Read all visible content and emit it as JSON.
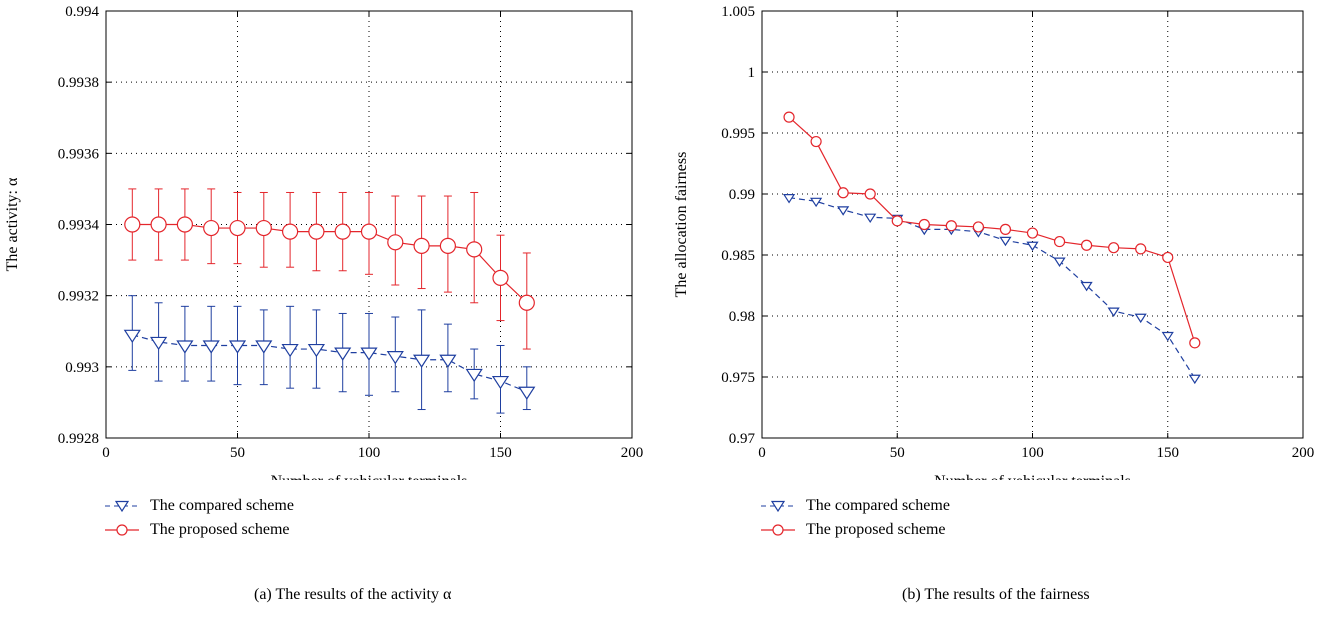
{
  "chart_data": [
    {
      "id": "a",
      "type": "line",
      "caption": "(a)  The results of the activity α",
      "xlabel": "Number of vehicular terminals",
      "ylabel": "The activity: α",
      "xlim": [
        0,
        200
      ],
      "ylim": [
        0.9928,
        0.994
      ],
      "xticks": [
        0,
        50,
        100,
        150,
        200
      ],
      "yticks": [
        0.9928,
        0.993,
        0.9932,
        0.9934,
        0.9936,
        0.9938,
        0.994
      ],
      "ytick_labels": [
        "0.9928",
        "0.993",
        "0.9932",
        "0.9934",
        "0.9936",
        "0.9938",
        "0.994"
      ],
      "grid": true,
      "x": [
        10,
        20,
        30,
        40,
        50,
        60,
        70,
        80,
        90,
        100,
        110,
        120,
        130,
        140,
        150,
        160
      ],
      "series": [
        {
          "name": "The compared scheme",
          "color": "#1f3fa0",
          "marker": "triangle-down",
          "style": "dashed",
          "values": [
            0.99309,
            0.99307,
            0.99306,
            0.99306,
            0.99306,
            0.99306,
            0.99305,
            0.99305,
            0.99304,
            0.99304,
            0.99303,
            0.99302,
            0.99302,
            0.99298,
            0.99296,
            0.99293
          ],
          "err_low": [
            0.99299,
            0.99296,
            0.99296,
            0.99296,
            0.99295,
            0.99295,
            0.99294,
            0.99294,
            0.99293,
            0.99292,
            0.99293,
            0.99288,
            0.99293,
            0.99291,
            0.99287,
            0.99288
          ],
          "err_high": [
            0.9932,
            0.99318,
            0.99317,
            0.99317,
            0.99317,
            0.99316,
            0.99317,
            0.99316,
            0.99315,
            0.99315,
            0.99314,
            0.99316,
            0.99312,
            0.99305,
            0.99306,
            0.993
          ]
        },
        {
          "name": "The proposed scheme",
          "color": "#e4262c",
          "marker": "circle",
          "style": "solid",
          "values": [
            0.9934,
            0.9934,
            0.9934,
            0.99339,
            0.99339,
            0.99339,
            0.99338,
            0.99338,
            0.99338,
            0.99338,
            0.99335,
            0.99334,
            0.99334,
            0.99333,
            0.99325,
            0.99318
          ],
          "err_low": [
            0.9933,
            0.9933,
            0.9933,
            0.99329,
            0.99329,
            0.99328,
            0.99328,
            0.99327,
            0.99327,
            0.99326,
            0.99323,
            0.99322,
            0.99321,
            0.99318,
            0.99313,
            0.99305
          ],
          "err_high": [
            0.9935,
            0.9935,
            0.9935,
            0.9935,
            0.99349,
            0.99349,
            0.99349,
            0.99349,
            0.99349,
            0.99349,
            0.99348,
            0.99348,
            0.99348,
            0.99349,
            0.99337,
            0.99332
          ]
        }
      ]
    },
    {
      "id": "b",
      "type": "line",
      "caption": "(b)  The results of the fairness",
      "xlabel": "Number of vehicular terminals",
      "ylabel": "The allocation fairness",
      "xlim": [
        0,
        200
      ],
      "ylim": [
        0.97,
        1.005
      ],
      "xticks": [
        0,
        50,
        100,
        150,
        200
      ],
      "yticks": [
        0.97,
        0.975,
        0.98,
        0.985,
        0.99,
        0.995,
        1,
        1.005
      ],
      "ytick_labels": [
        "0.97",
        "0.975",
        "0.98",
        "0.985",
        "0.99",
        "0.995",
        "1",
        "1.005"
      ],
      "grid": true,
      "x": [
        10,
        20,
        30,
        40,
        50,
        60,
        70,
        80,
        90,
        100,
        110,
        120,
        130,
        140,
        150,
        160
      ],
      "series": [
        {
          "name": "The compared scheme",
          "color": "#1f3fa0",
          "marker": "triangle-down",
          "style": "dashed",
          "values": [
            0.9897,
            0.9894,
            0.9887,
            0.9881,
            0.988,
            0.9871,
            0.9871,
            0.9869,
            0.9862,
            0.9858,
            0.9845,
            0.9825,
            0.9804,
            0.9799,
            0.9784,
            0.9749
          ]
        },
        {
          "name": "The proposed scheme",
          "color": "#e4262c",
          "marker": "circle",
          "style": "solid",
          "values": [
            0.9963,
            0.9943,
            0.9901,
            0.99,
            0.9878,
            0.9875,
            0.9874,
            0.9873,
            0.9871,
            0.9868,
            0.9861,
            0.9858,
            0.9856,
            0.9855,
            0.9848,
            0.9778
          ]
        }
      ]
    }
  ]
}
